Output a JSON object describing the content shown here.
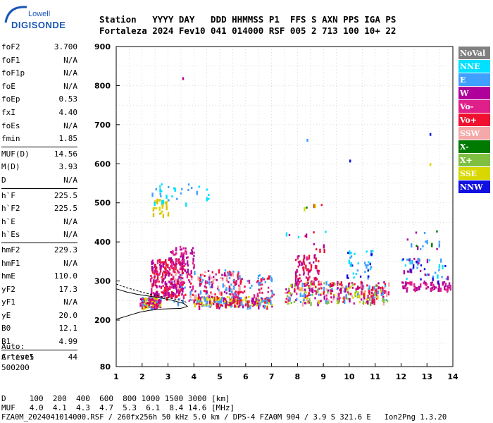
{
  "logo": {
    "line1": "Lowell",
    "line2": "DIGISONDE"
  },
  "header": {
    "line1": "Station   YYYY DAY   DDD HHMMSS P1  FFS S AXN PPS IGA PS",
    "line2": "Fortaleza 2024 Fev10 041 014000 RSF 005 2 713 100 10+ 22"
  },
  "params": [
    {
      "name": "foF2",
      "value": "3.700"
    },
    {
      "name": "foF1",
      "value": "N/A"
    },
    {
      "name": "foF1p",
      "value": "N/A"
    },
    {
      "name": "foE",
      "value": "N/A"
    },
    {
      "name": "foEp",
      "value": "0.53"
    },
    {
      "name": "fxI",
      "value": "4.40"
    },
    {
      "name": "foEs",
      "value": "N/A"
    },
    {
      "name": "fmin",
      "value": "1.85"
    },
    {
      "name": "MUF(D)",
      "value": "14.56"
    },
    {
      "name": "M(D)",
      "value": "3.93"
    },
    {
      "name": "D",
      "value": "N/A"
    },
    {
      "name": "h`F",
      "value": "225.5"
    },
    {
      "name": "h`F2",
      "value": "225.5"
    },
    {
      "name": "h`E",
      "value": "N/A"
    },
    {
      "name": "h`Es",
      "value": "N/A"
    },
    {
      "name": "hmF2",
      "value": "229.3"
    },
    {
      "name": "hmF1",
      "value": "N/A"
    },
    {
      "name": "hmE",
      "value": "110.0"
    },
    {
      "name": "yF2",
      "value": "17.3"
    },
    {
      "name": "yF1",
      "value": "N/A"
    },
    {
      "name": "yE",
      "value": "20.0"
    },
    {
      "name": "B0",
      "value": "12.1"
    },
    {
      "name": "B1",
      "value": "4.99"
    },
    {
      "name": "C-level",
      "value": "44"
    }
  ],
  "auto": {
    "line1": "Auto:",
    "line2": "Artist5",
    "line3": "500200"
  },
  "bottom": {
    "d_row": "D     100  200  400  600  800 1000 1500 3000 [km]",
    "muf_row": "MUF   4.0  4.1  4.3  4.7  5.3  6.1  8.4 14.6 [MHz]"
  },
  "footer": "FZA0M_2024041014000.RSF / 260fx256h 50 kHz 5.0 km / DPS-4 FZA0M 904 / 3.9 S 321.6 E   Ion2Png 1.3.20",
  "chart_data": {
    "type": "scatter",
    "xlim": [
      1,
      14
    ],
    "ylim": [
      80,
      900
    ],
    "x_ticks": [
      1,
      2,
      3,
      4,
      5,
      6,
      7,
      8,
      9,
      10,
      11,
      12,
      13,
      14
    ],
    "y_ticks": [
      80,
      200,
      300,
      400,
      500,
      600,
      700,
      800,
      900
    ],
    "grid": true,
    "legend_position": "right",
    "legend": [
      {
        "label": "NoVal",
        "color": "#808080",
        "text_color": "#ffffff"
      },
      {
        "label": "NNE",
        "color": "#00e0ff",
        "text_color": "#ffffff"
      },
      {
        "label": "E",
        "color": "#40a0ff",
        "text_color": "#ffffff"
      },
      {
        "label": "W",
        "color": "#b0009a",
        "text_color": "#ffffff"
      },
      {
        "label": "Vo-",
        "color": "#e0208a",
        "text_color": "#ffffff"
      },
      {
        "label": "Vo+",
        "color": "#f01030",
        "text_color": "#ffffff"
      },
      {
        "label": "SSW",
        "color": "#f4a8a8",
        "text_color": "#ffffff"
      },
      {
        "label": "X-",
        "color": "#007a00",
        "text_color": "#ffffff"
      },
      {
        "label": "X+",
        "color": "#80c040",
        "text_color": "#ffffff"
      },
      {
        "label": "SSE",
        "color": "#d8d800",
        "text_color": "#ffffff"
      },
      {
        "label": "NNW",
        "color": "#1010e0",
        "text_color": "#ffffff"
      }
    ],
    "clusters": [
      {
        "x": [
          1.9,
          2.7
        ],
        "y": [
          235,
          260
        ],
        "n": 160,
        "colors": [
          "#f01030",
          "#e0208a",
          "#b0009a",
          "#d8d800",
          "#40a0ff"
        ]
      },
      {
        "x": [
          2.3,
          3.6
        ],
        "y": [
          260,
          360
        ],
        "n": 260,
        "colors": [
          "#b0009a",
          "#e0208a",
          "#f01030"
        ]
      },
      {
        "x": [
          3.0,
          4.0
        ],
        "y": [
          330,
          390
        ],
        "n": 60,
        "colors": [
          "#b0009a",
          "#e0208a"
        ]
      },
      {
        "x": [
          3.2,
          5.8
        ],
        "y": [
          245,
          330
        ],
        "n": 200,
        "colors": [
          "#f01030",
          "#e0208a",
          "#b0009a",
          "#40a0ff",
          "#f4a8a8"
        ]
      },
      {
        "x": [
          2.4,
          3.0
        ],
        "y": [
          470,
          512
        ],
        "n": 30,
        "colors": [
          "#d8d800",
          "#e0c000"
        ]
      },
      {
        "x": [
          2.3,
          4.6
        ],
        "y": [
          500,
          550
        ],
        "n": 30,
        "colors": [
          "#40a0ff",
          "#00e0ff"
        ]
      },
      {
        "x": [
          4.0,
          7.0
        ],
        "y": [
          236,
          262
        ],
        "n": 220,
        "colors": [
          "#d8d800",
          "#40a0ff",
          "#f01030",
          "#b0009a"
        ]
      },
      {
        "x": [
          5.5,
          7.1
        ],
        "y": [
          260,
          320
        ],
        "n": 60,
        "colors": [
          "#f01030",
          "#e0208a",
          "#40a0ff"
        ]
      },
      {
        "x": [
          7.5,
          11.5
        ],
        "y": [
          245,
          300
        ],
        "n": 320,
        "colors": [
          "#f01030",
          "#e0208a",
          "#b0009a",
          "#d8d800",
          "#40a0ff",
          "#f4a8a8",
          "#80c040"
        ]
      },
      {
        "x": [
          7.9,
          8.8
        ],
        "y": [
          290,
          370
        ],
        "n": 80,
        "colors": [
          "#f01030",
          "#b0009a",
          "#e0208a"
        ]
      },
      {
        "x": [
          9.8,
          10.9
        ],
        "y": [
          310,
          380
        ],
        "n": 40,
        "colors": [
          "#1010e0",
          "#40a0ff",
          "#00e0ff"
        ]
      },
      {
        "x": [
          12.0,
          13.9
        ],
        "y": [
          280,
          300
        ],
        "n": 60,
        "colors": [
          "#b0009a",
          "#e0208a"
        ]
      },
      {
        "x": [
          12.0,
          13.8
        ],
        "y": [
          300,
          360
        ],
        "n": 50,
        "colors": [
          "#40a0ff",
          "#00e0ff",
          "#b0009a",
          "#1010e0"
        ]
      },
      {
        "x": [
          12.2,
          13.6
        ],
        "y": [
          380,
          430
        ],
        "n": 15,
        "colors": [
          "#b0009a",
          "#40a0ff",
          "#007a00"
        ]
      },
      {
        "x": [
          7.5,
          9.2
        ],
        "y": [
          380,
          430
        ],
        "n": 12,
        "colors": [
          "#b0009a",
          "#00e0ff",
          "#f01030"
        ]
      },
      {
        "x": [
          8.1,
          9.0
        ],
        "y": [
          480,
          500
        ],
        "n": 8,
        "colors": [
          "#d8d800",
          "#007a00",
          "#f01030"
        ]
      }
    ],
    "isolated_points": [
      {
        "x": 3.55,
        "y": 818,
        "color": "#b0009a"
      },
      {
        "x": 8.35,
        "y": 660,
        "color": "#40a0ff"
      },
      {
        "x": 10.0,
        "y": 607,
        "color": "#1010e0"
      },
      {
        "x": 13.1,
        "y": 675,
        "color": "#1010e0"
      },
      {
        "x": 13.1,
        "y": 598,
        "color": "#d8d800"
      }
    ],
    "trace_curves": [
      {
        "x": [
          1.0,
          1.5,
          1.9,
          2.3,
          2.7,
          3.1,
          3.5,
          3.75,
          3.6,
          3.2,
          2.7,
          2.2,
          1.8,
          1.4,
          1.0
        ],
        "y": [
          202,
          212,
          220,
          225,
          228,
          229,
          230,
          235,
          243,
          250,
          257,
          262,
          266,
          272,
          280
        ]
      },
      {
        "x": [
          1.0,
          1.4,
          1.8,
          2.2,
          2.6,
          3.0,
          3.4,
          3.75
        ],
        "y": [
          292,
          283,
          275,
          268,
          262,
          257,
          252,
          245
        ]
      }
    ]
  }
}
